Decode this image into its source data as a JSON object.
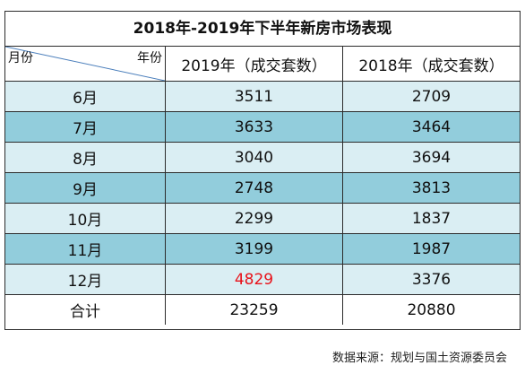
{
  "title": "2018年-2019年下半年新房市场表现",
  "header": {
    "corner_row_label": "月份",
    "corner_col_label": "年份",
    "col_2019": "2019年（成交套数）",
    "col_2018": "2018年（成交套数）"
  },
  "rows": [
    {
      "month": "6月",
      "y2019": "3511",
      "y2018": "2709"
    },
    {
      "month": "7月",
      "y2019": "3633",
      "y2018": "3464"
    },
    {
      "month": "8月",
      "y2019": "3040",
      "y2018": "3694"
    },
    {
      "month": "9月",
      "y2019": "2748",
      "y2018": "3813"
    },
    {
      "month": "10月",
      "y2019": "2299",
      "y2018": "1837"
    },
    {
      "month": "11月",
      "y2019": "3199",
      "y2018": "1987"
    },
    {
      "month": "12月",
      "y2019": "4829",
      "y2018": "3376"
    }
  ],
  "total": {
    "label": "合计",
    "y2019": "23259",
    "y2018": "20880"
  },
  "source": "数据来源：规划与国土资源委员会",
  "colors": {
    "light_row": "#daeef3",
    "dark_row": "#92cddc",
    "highlight": "#e8121a"
  }
}
